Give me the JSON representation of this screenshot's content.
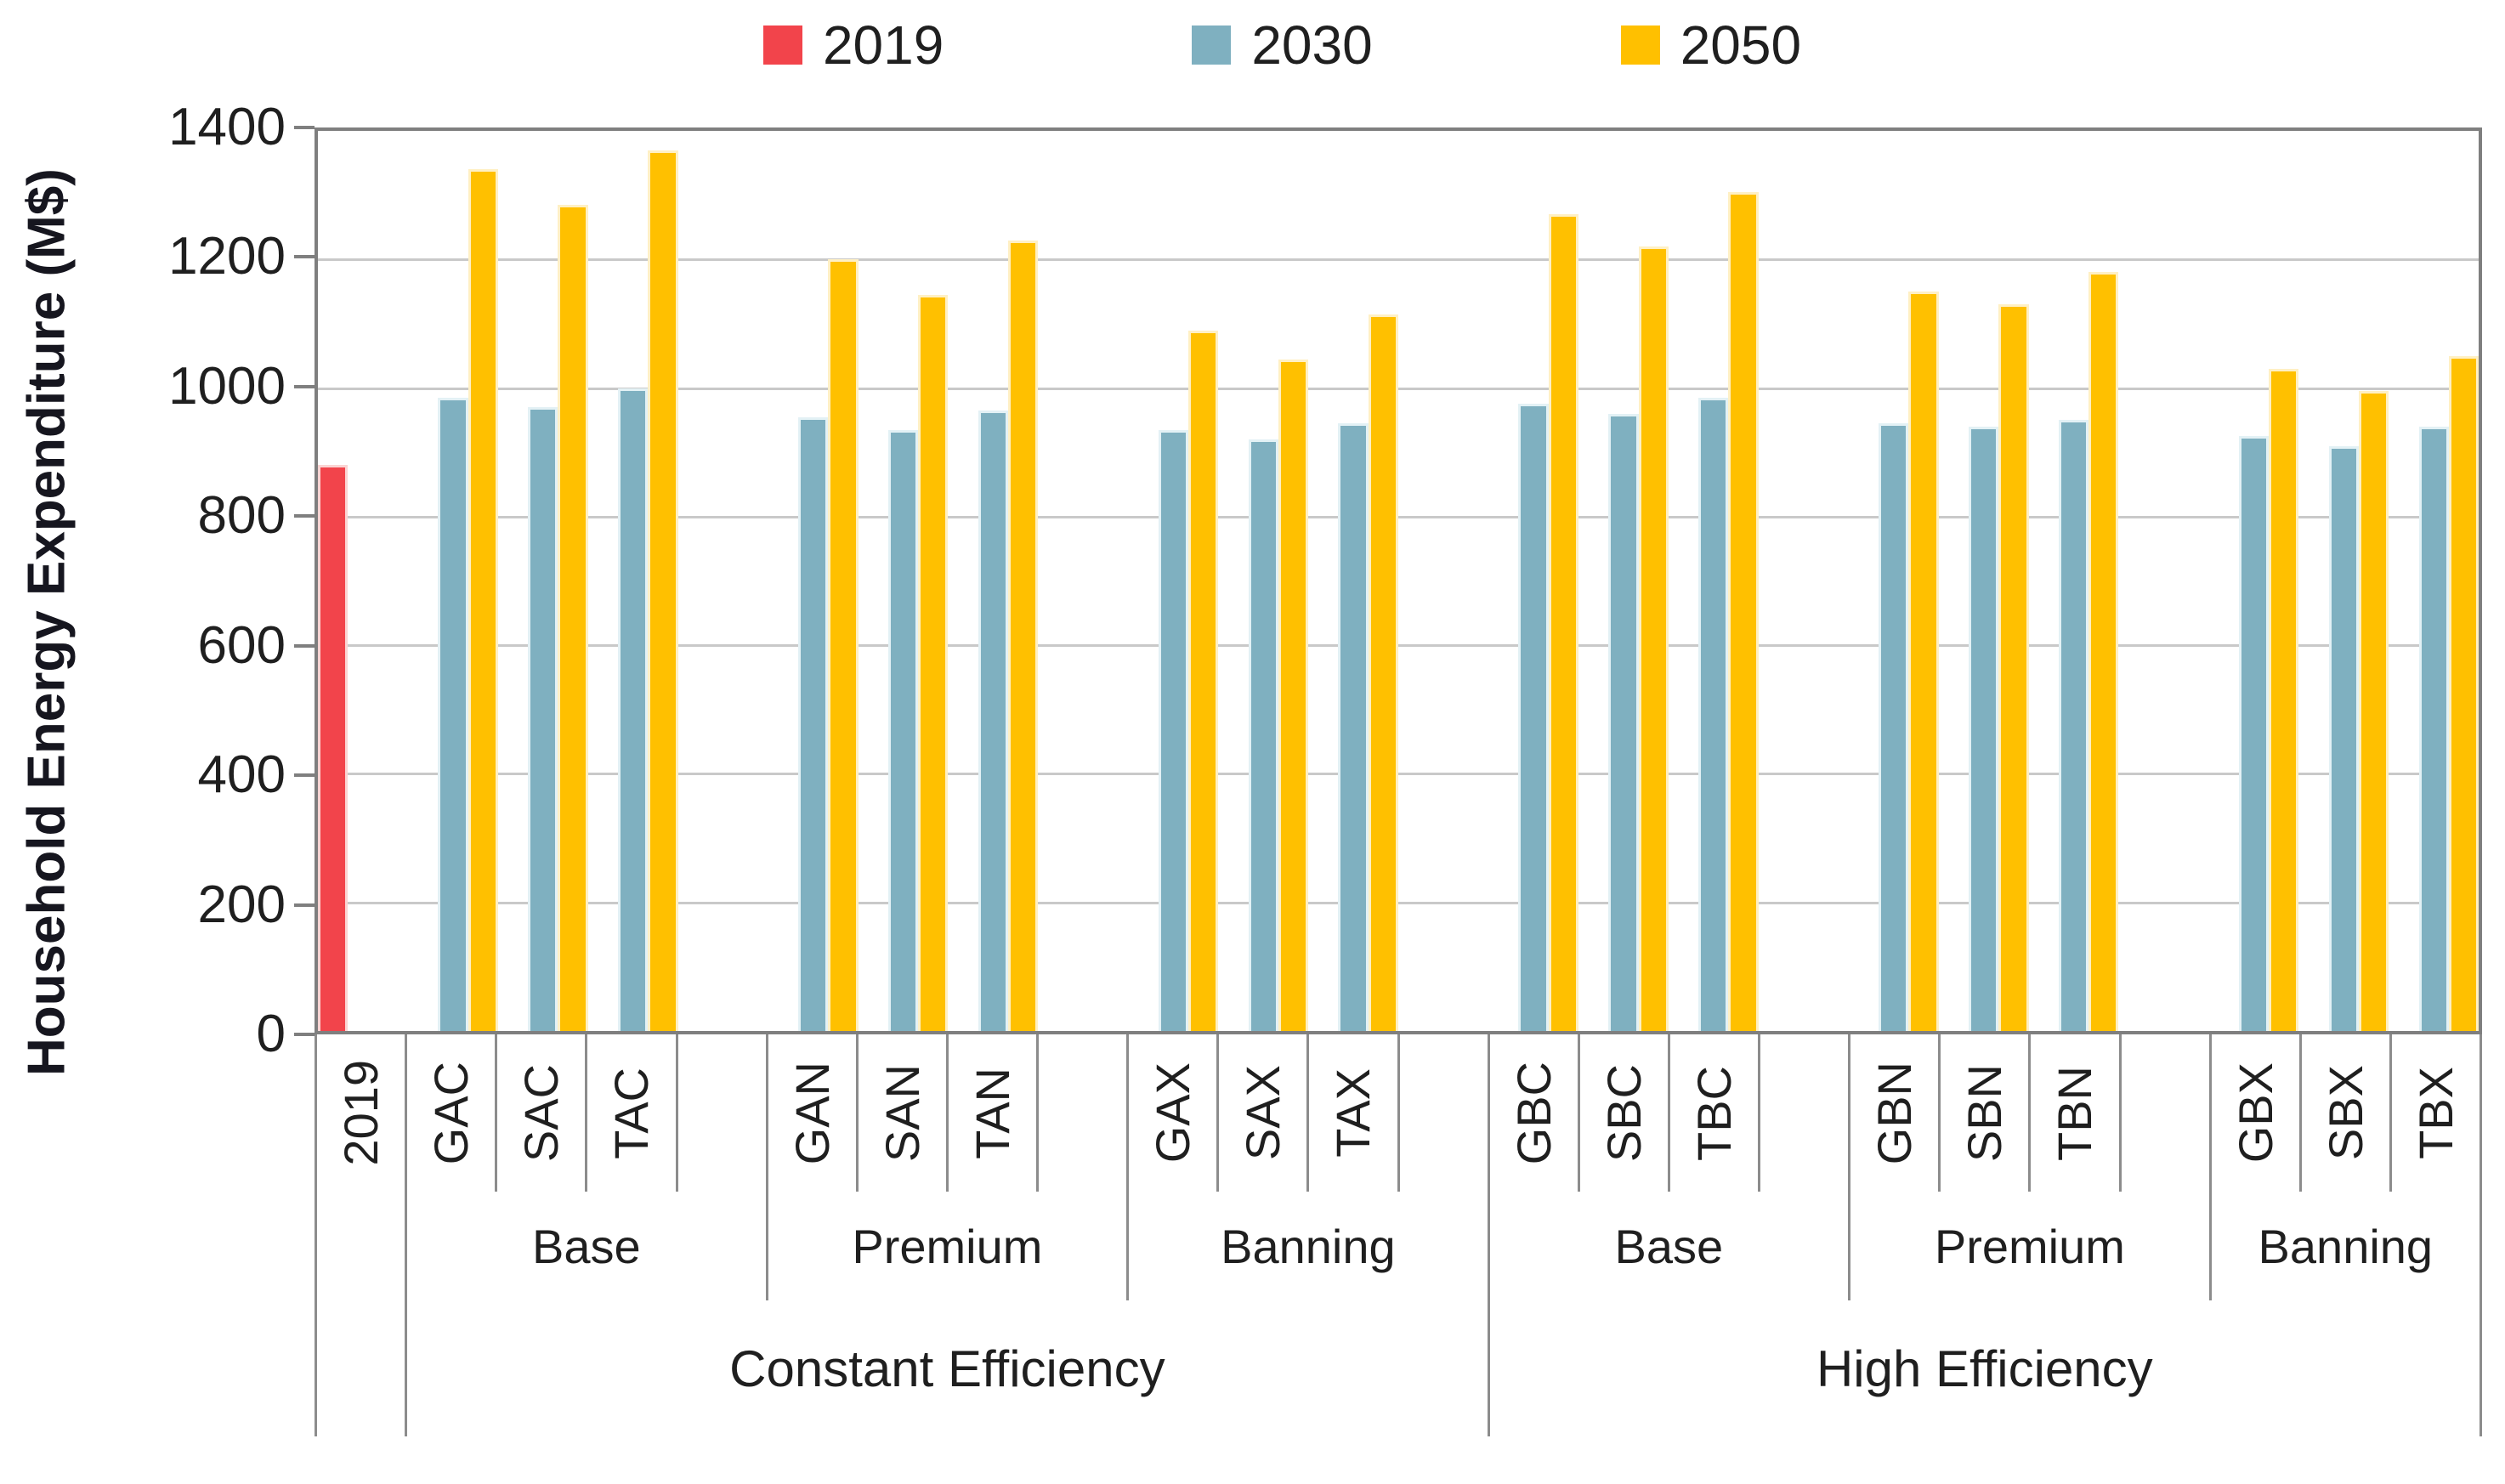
{
  "chart_data": {
    "type": "bar",
    "title": "",
    "y_axis": {
      "title": "Household Energy Expenditure (M$)",
      "min": 0,
      "max": 1400,
      "tick_step": 200,
      "ticks": [
        1400,
        1200,
        1000,
        800,
        600,
        400,
        200,
        0
      ]
    },
    "grid": "horizontal",
    "legend_position": "top",
    "series": [
      {
        "name": "2019",
        "color": "#f2444b",
        "edge": "#fbd4d3"
      },
      {
        "name": "2030",
        "color": "#7fb0c0",
        "edge": "#e3f1f5"
      },
      {
        "name": "2050",
        "color": "#ffc000",
        "edge": "#fff0c4"
      }
    ],
    "categories": [
      "2019",
      "GAC",
      "SAC",
      "TAC",
      "GAN",
      "SAN",
      "TAN",
      "GAX",
      "SAX",
      "TAX",
      "GBC",
      "SBC",
      "TBC",
      "GBN",
      "SBN",
      "TBN",
      "GBX",
      "SBX",
      "TBX"
    ],
    "cells": [
      "2019",
      "GAC",
      "SAC",
      "TAC",
      "",
      "GAN",
      "SAN",
      "TAN",
      "",
      "GAX",
      "SAX",
      "TAX",
      "",
      "GBC",
      "SBC",
      "TBC",
      "",
      "GBN",
      "SBN",
      "TBN",
      "",
      "GBX",
      "SBX",
      "TBX"
    ],
    "data": {
      "2019": {
        "2019": 880
      },
      "GAC": {
        "2030": 985,
        "2050": 1340
      },
      "SAC": {
        "2030": 970,
        "2050": 1285
      },
      "TAC": {
        "2030": 1000,
        "2050": 1370
      },
      "GAN": {
        "2030": 955,
        "2050": 1200
      },
      "SAN": {
        "2030": 935,
        "2050": 1145
      },
      "TAN": {
        "2030": 965,
        "2050": 1230
      },
      "GAX": {
        "2030": 935,
        "2050": 1090
      },
      "SAX": {
        "2030": 920,
        "2050": 1045
      },
      "TAX": {
        "2030": 945,
        "2050": 1115
      },
      "GBC": {
        "2030": 975,
        "2050": 1270
      },
      "SBC": {
        "2030": 960,
        "2050": 1220
      },
      "TBC": {
        "2030": 985,
        "2050": 1305
      },
      "GBN": {
        "2030": 945,
        "2050": 1150
      },
      "SBN": {
        "2030": 940,
        "2050": 1130
      },
      "TBN": {
        "2030": 950,
        "2050": 1180
      },
      "GBX": {
        "2030": 925,
        "2050": 1030
      },
      "SBX": {
        "2030": 910,
        "2050": 995
      },
      "TBX": {
        "2030": 940,
        "2050": 1050
      }
    },
    "category_groups": [
      {
        "label": "",
        "span_cells": 1
      },
      {
        "label": "Base",
        "span_cells": 4
      },
      {
        "label": "Premium",
        "span_cells": 4
      },
      {
        "label": "Banning",
        "span_cells": 4
      },
      {
        "label": "Base",
        "span_cells": 4
      },
      {
        "label": "Premium",
        "span_cells": 4
      },
      {
        "label": "Banning",
        "span_cells": 3
      }
    ],
    "efficiency_groups": [
      {
        "label": "",
        "span_cells": 1
      },
      {
        "label": "Constant Efficiency",
        "span_cells": 12
      },
      {
        "label": "High Efficiency",
        "span_cells": 11
      }
    ],
    "colors": {
      "axis_border": "#7f7f7f",
      "gridline": "#c9c9c9",
      "separator": "#8c8c8c",
      "text": "#1f1f1f"
    }
  }
}
